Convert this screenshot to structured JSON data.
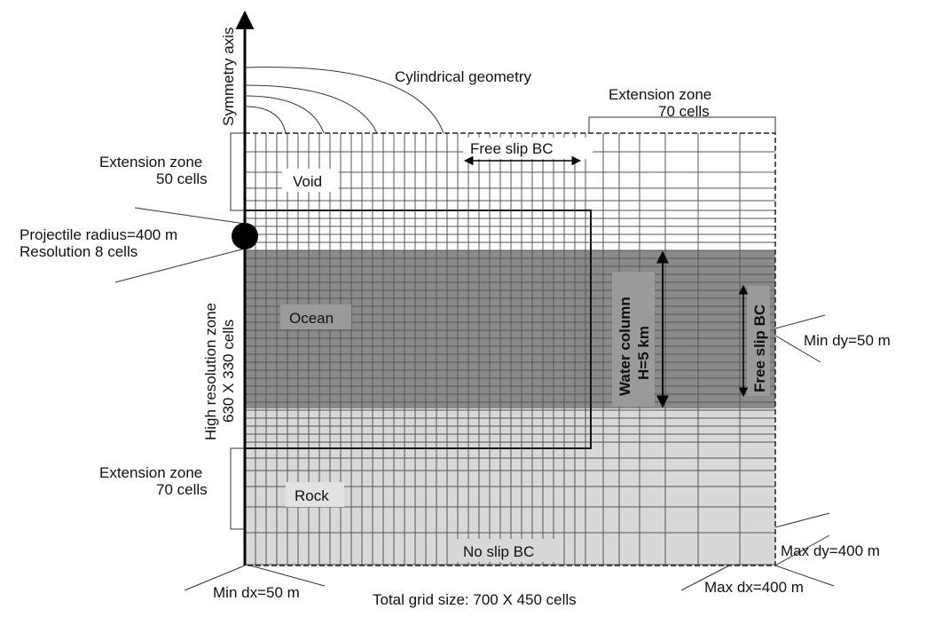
{
  "labels": {
    "symmetry_axis": "Symmetry axis",
    "cylindrical_geometry": "Cylindrical geometry",
    "extension_zone_top_line1": "Extension zone",
    "extension_zone_top_line2": "70 cells",
    "extension_zone_left_top_line1": "Extension zone",
    "extension_zone_left_top_line2": "50 cells",
    "free_slip_top": "Free slip BC",
    "void": "Void",
    "projectile_line1": "Projectile radius=400 m",
    "projectile_line2": "Resolution 8 cells",
    "high_res_line1": "High resolution zone",
    "high_res_line2": "630 X 330 cells",
    "ocean": "Ocean",
    "water_column_line1": "Water column",
    "water_column_line2": "H=5 km",
    "free_slip_right": "Free slip BC",
    "min_dy": "Min dy=50 m",
    "extension_zone_left_bottom_line1": "Extension zone",
    "extension_zone_left_bottom_line2": "70 cells",
    "rock": "Rock",
    "no_slip": "No slip BC",
    "max_dy": "Max dy=400 m",
    "min_dx": "Min dx=50 m",
    "max_dx": "Max dx=400 m",
    "total_grid": "Total grid size: 700 X 450 cells"
  },
  "colors": {
    "ocean": "#8a8a8a",
    "rock": "#d8d8d8",
    "void": "#ffffff",
    "label_box_ocean": "#9a9a9a",
    "label_box_rock": "#e2e2e2",
    "projectile": "#000000"
  }
}
